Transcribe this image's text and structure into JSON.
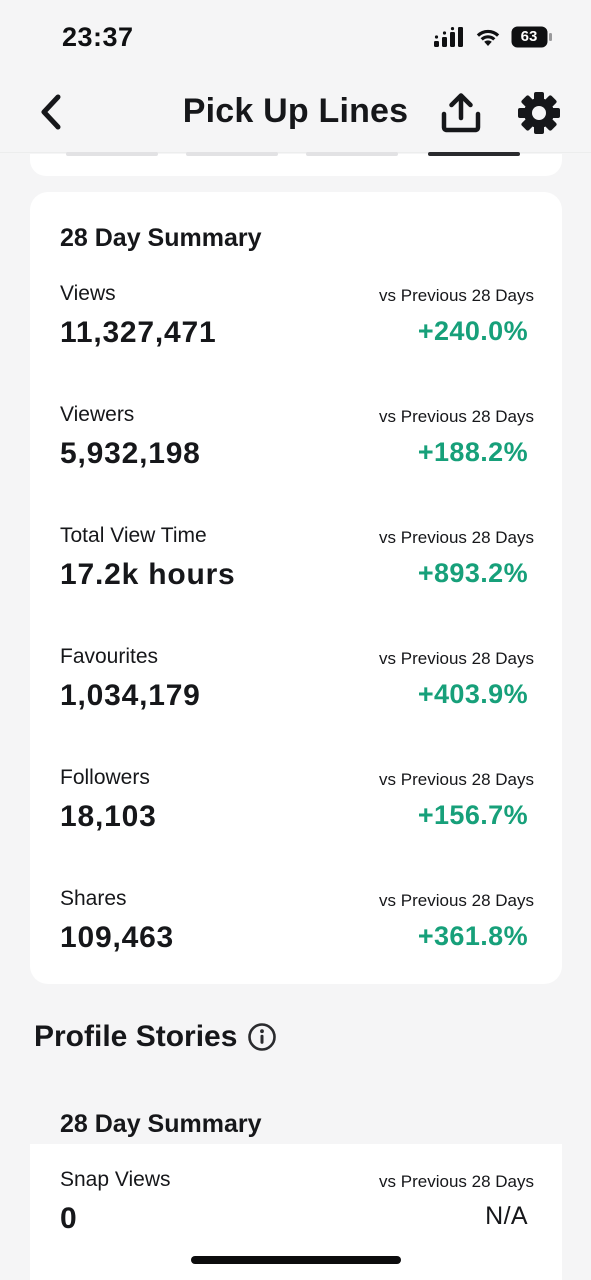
{
  "status_bar": {
    "time": "23:37",
    "battery": "63",
    "icons": [
      "signal-icon",
      "wifi-icon",
      "battery-icon"
    ]
  },
  "nav": {
    "title": "Pick Up Lines",
    "back_icon": "chevron-left-icon",
    "share_icon": "share-upload-icon",
    "settings_icon": "gear-icon"
  },
  "summary": {
    "title": "28 Day Summary",
    "stats": [
      {
        "label": "Views",
        "value": "11,327,471",
        "compare": "vs Previous 28 Days",
        "change": "+240.0%"
      },
      {
        "label": "Viewers",
        "value": "5,932,198",
        "compare": "vs Previous 28 Days",
        "change": "+188.2%"
      },
      {
        "label": "Total View Time",
        "value": "17.2k hours",
        "compare": "vs Previous 28 Days",
        "change": "+893.2%"
      },
      {
        "label": "Favourites",
        "value": "1,034,179",
        "compare": "vs Previous 28 Days",
        "change": "+403.9%"
      },
      {
        "label": "Followers",
        "value": "18,103",
        "compare": "vs Previous 28 Days",
        "change": "+156.7%"
      },
      {
        "label": "Shares",
        "value": "109,463",
        "compare": "vs Previous 28 Days",
        "change": "+361.8%"
      }
    ]
  },
  "profile_stories": {
    "title": "Profile Stories",
    "info_icon": "info-icon",
    "summary_title": "28 Day Summary",
    "stats": [
      {
        "label": "Snap Views",
        "value": "0",
        "compare": "vs Previous 28 Days",
        "change": "N/A"
      }
    ]
  },
  "colors": {
    "positive": "#17a07a",
    "background": "#f5f5f6",
    "card": "#ffffff",
    "text": "#16171a"
  }
}
